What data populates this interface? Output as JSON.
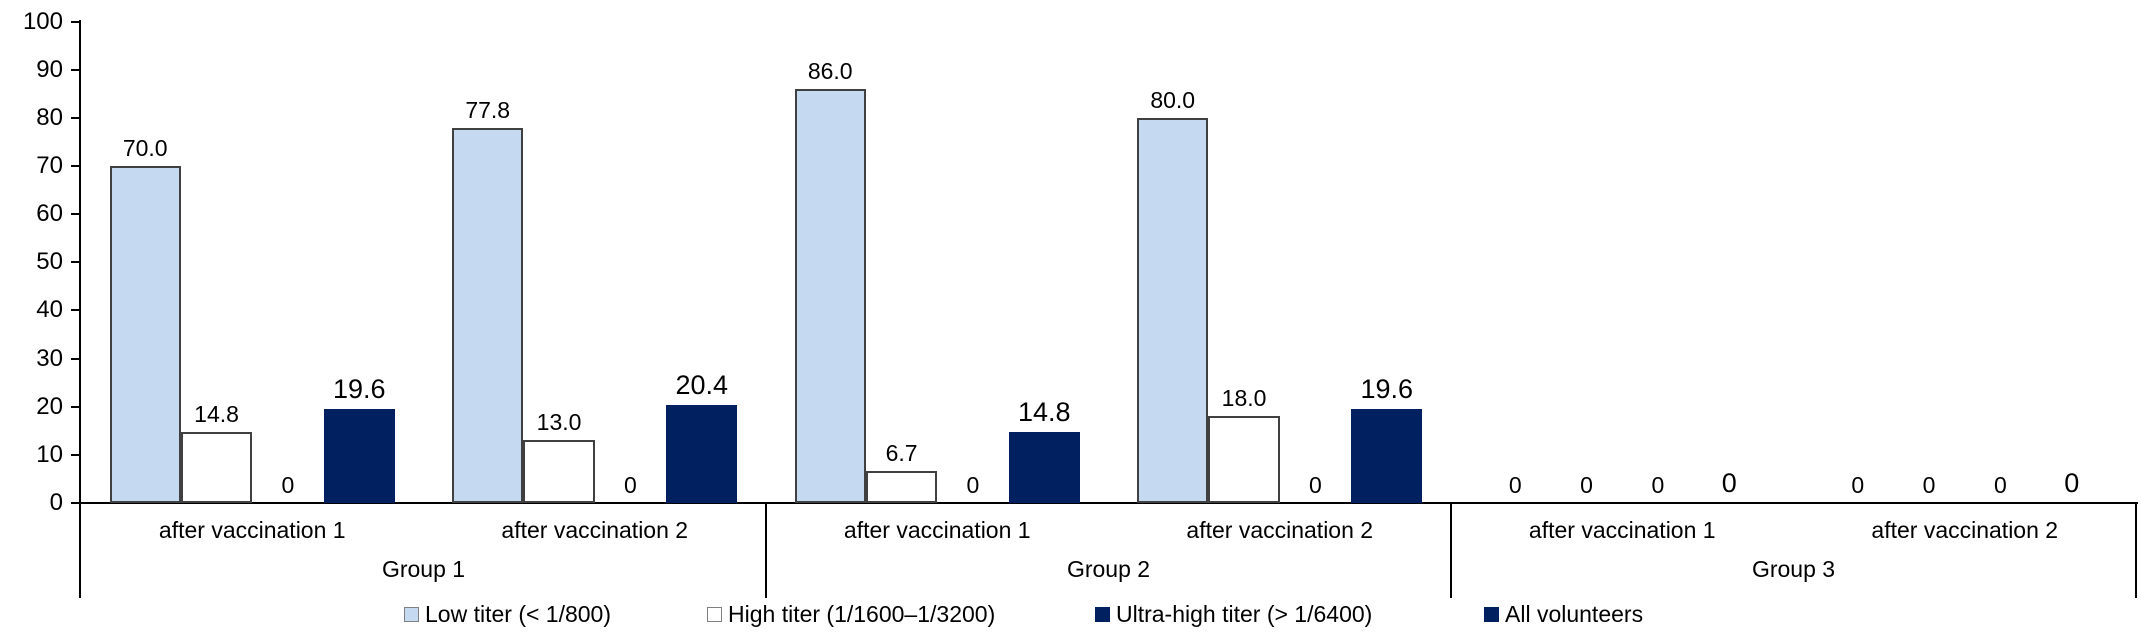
{
  "chart_data": {
    "type": "bar",
    "title": "",
    "xlabel": "",
    "ylabel": "",
    "ylim": [
      0,
      100
    ],
    "y_ticks": [
      "0",
      "10",
      "20",
      "30",
      "40",
      "50",
      "60",
      "70",
      "80",
      "90",
      "100"
    ],
    "grid": false,
    "legend_position": "bottom",
    "series": [
      {
        "name": "Low titer (< 1/800)",
        "fill": "#C5D9F1",
        "border": "#404040",
        "swatch_border": "#808080"
      },
      {
        "name": "High titer (1/1600–1/3200)",
        "fill": "#FFFFFF",
        "border": "#404040",
        "swatch_border": "#808080"
      },
      {
        "name": "Ultra-high titer (> 1/6400)",
        "fill": "#002060",
        "border": "#002060",
        "swatch_border": "#002060"
      },
      {
        "name": "All volunteers",
        "fill": "#002060",
        "border": "#002060",
        "swatch_border": "#002060"
      }
    ],
    "groups": [
      {
        "label": "Group 1",
        "categories": [
          {
            "label": "after vaccination 1",
            "values": [
              70.0,
              14.8,
              0,
              19.6
            ],
            "labels": [
              "70.0",
              "14.8",
              "0",
              "19.6"
            ]
          },
          {
            "label": "after vaccination 2",
            "values": [
              77.8,
              13.0,
              0,
              20.4
            ],
            "labels": [
              "77.8",
              "13.0",
              "0",
              "20.4"
            ]
          }
        ]
      },
      {
        "label": "Group 2",
        "categories": [
          {
            "label": "after vaccination 1",
            "values": [
              86.0,
              6.7,
              0,
              14.8
            ],
            "labels": [
              "86.0",
              "6.7",
              "0",
              "14.8"
            ]
          },
          {
            "label": "after vaccination 2",
            "values": [
              80.0,
              18.0,
              0,
              19.6
            ],
            "labels": [
              "80.0",
              "18.0",
              "0",
              "19.6"
            ]
          }
        ]
      },
      {
        "label": "Group 3",
        "categories": [
          {
            "label": "after vaccination 1",
            "values": [
              0,
              0,
              0,
              0
            ],
            "labels": [
              "0",
              "0",
              "0",
              "0"
            ]
          },
          {
            "label": "after vaccination 2",
            "values": [
              0,
              0,
              0,
              0
            ],
            "labels": [
              "0",
              "0",
              "0",
              "0"
            ]
          }
        ]
      }
    ],
    "colors": {
      "axis": "#000000",
      "text": "#000000"
    }
  }
}
